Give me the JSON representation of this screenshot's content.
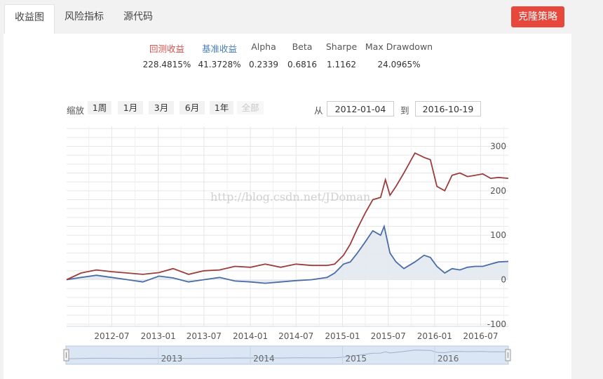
{
  "tabs": [
    {
      "label": "收益图"
    },
    {
      "label": "风险指标"
    },
    {
      "label": "源代码"
    }
  ],
  "clone_button": "克隆策略",
  "stats": {
    "headers": [
      "回测收益",
      "基准收益",
      "Alpha",
      "Beta",
      "Sharpe",
      "Max Drawdown"
    ],
    "values": [
      "228.4815%",
      "41.3728%",
      "0.2339",
      "0.6816",
      "1.1162",
      "24.0965%"
    ],
    "header_colors": [
      "#d9534f",
      "#4a7ebb",
      "#555",
      "#555",
      "#555",
      "#555"
    ]
  },
  "zoom": {
    "label": "缩放",
    "buttons": [
      "1周",
      "1月",
      "3月",
      "6月",
      "1年",
      "全部"
    ],
    "from_label": "从",
    "to_label": "到",
    "from_value": "2012-01-04",
    "to_value": "2016-10-19"
  },
  "watermark": "http://blog.csdn.net/JDoman",
  "colors": {
    "strategy": "#9c3c3c",
    "benchmark": "#4a6da7",
    "benchmark_fill": "#e3e8f0",
    "grid": "#e6e6e6"
  },
  "chart_data": {
    "type": "line",
    "x_ticks": [
      "2012-07",
      "2013-01",
      "2013-07",
      "2014-01",
      "2014-07",
      "2015-01",
      "2015-07",
      "2016-01",
      "2016-07"
    ],
    "y_ticks": [
      300,
      200,
      100,
      0,
      -100
    ],
    "ylim": [
      -105,
      345
    ],
    "xlim": [
      "2012-01-04",
      "2016-10-19"
    ],
    "navigator_labels": [
      "2013",
      "2014",
      "2015",
      "2016"
    ],
    "series": [
      {
        "name": "回测收益",
        "x": [
          "2012-01-04",
          "2012-03-01",
          "2012-05-01",
          "2012-07-01",
          "2012-09-01",
          "2012-11-01",
          "2013-01-04",
          "2013-03-01",
          "2013-05-01",
          "2013-07-01",
          "2013-09-01",
          "2013-11-01",
          "2014-01-02",
          "2014-03-01",
          "2014-05-01",
          "2014-07-01",
          "2014-09-01",
          "2014-11-01",
          "2014-12-01",
          "2015-01-05",
          "2015-02-01",
          "2015-03-01",
          "2015-04-01",
          "2015-05-01",
          "2015-06-01",
          "2015-06-20",
          "2015-07-08",
          "2015-08-01",
          "2015-09-01",
          "2015-10-15",
          "2015-11-20",
          "2015-12-15",
          "2016-01-10",
          "2016-02-10",
          "2016-03-10",
          "2016-04-10",
          "2016-05-10",
          "2016-06-10",
          "2016-07-10",
          "2016-08-10",
          "2016-09-10",
          "2016-10-19"
        ],
        "values": [
          0,
          15,
          22,
          18,
          15,
          12,
          16,
          25,
          12,
          20,
          22,
          30,
          28,
          35,
          28,
          35,
          32,
          32,
          35,
          55,
          80,
          115,
          150,
          180,
          185,
          225,
          190,
          210,
          240,
          285,
          275,
          270,
          210,
          200,
          235,
          240,
          232,
          235,
          238,
          228,
          230,
          228
        ]
      },
      {
        "name": "基准收益",
        "x": [
          "2012-01-04",
          "2012-03-01",
          "2012-05-01",
          "2012-07-01",
          "2012-09-01",
          "2012-11-01",
          "2013-01-04",
          "2013-03-01",
          "2013-05-01",
          "2013-07-01",
          "2013-09-01",
          "2013-11-01",
          "2014-01-02",
          "2014-03-01",
          "2014-05-01",
          "2014-07-01",
          "2014-09-01",
          "2014-11-01",
          "2014-12-01",
          "2015-01-05",
          "2015-02-01",
          "2015-03-01",
          "2015-04-01",
          "2015-05-01",
          "2015-06-01",
          "2015-06-15",
          "2015-07-08",
          "2015-08-01",
          "2015-09-01",
          "2015-10-15",
          "2015-11-20",
          "2015-12-15",
          "2016-01-10",
          "2016-02-10",
          "2016-03-10",
          "2016-04-10",
          "2016-05-10",
          "2016-06-10",
          "2016-07-10",
          "2016-08-10",
          "2016-09-10",
          "2016-10-19"
        ],
        "values": [
          0,
          5,
          10,
          5,
          0,
          -5,
          8,
          4,
          -5,
          0,
          5,
          -3,
          -5,
          -8,
          -5,
          -2,
          0,
          5,
          15,
          35,
          40,
          60,
          85,
          110,
          100,
          120,
          60,
          40,
          25,
          40,
          55,
          50,
          30,
          15,
          25,
          22,
          28,
          30,
          30,
          35,
          40,
          41
        ]
      }
    ]
  }
}
